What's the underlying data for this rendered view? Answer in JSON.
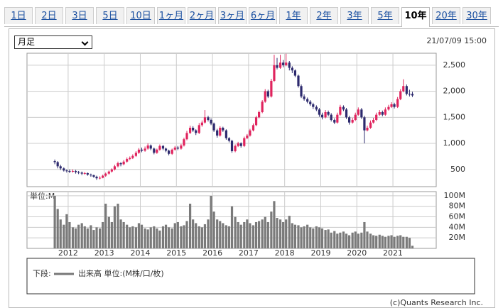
{
  "tabs": [
    "1日",
    "2日",
    "3日",
    "5日",
    "10日",
    "1ヶ月",
    "2ヶ月",
    "3ヶ月",
    "6ヶ月",
    "1年",
    "2年",
    "3年",
    "5年",
    "10年",
    "20年",
    "30年"
  ],
  "selected_tab": 13,
  "period_select": "月足",
  "timestamp": "21/07/09 15:00",
  "legend": {
    "prefix": "下段:",
    "text": "出来高 単位:(M株/口/枚)"
  },
  "footer": "(c)Quants Research Inc.",
  "chart_data": {
    "type": "candlestick",
    "up_color": "#e0245e",
    "down_color": "#2d2a6e",
    "volume_color": "#7a7a7a",
    "grid": true,
    "xlim": [
      2010.86,
      2022.2
    ],
    "xticks": [
      2012,
      2013,
      2014,
      2015,
      2016,
      2017,
      2018,
      2019,
      2020,
      2021
    ],
    "ylim": [
      170,
      2730
    ],
    "yticks": [
      500,
      {
        "value": 1000,
        "label": "1,000"
      },
      {
        "value": 1500,
        "label": "1,500"
      },
      {
        "value": 2000,
        "label": "2,000"
      },
      {
        "value": 2500,
        "label": "2,500"
      }
    ],
    "volume_label": "単位:M",
    "volume_ylim": [
      0,
      108
    ],
    "volume_yticks": [
      {
        "value": 20,
        "label": "20M"
      },
      {
        "value": 40,
        "label": "40M"
      },
      {
        "value": 60,
        "label": "60M"
      },
      {
        "value": 80,
        "label": "80M"
      },
      {
        "value": 100,
        "label": "100M"
      }
    ],
    "x": [
      2011.63,
      2011.71,
      2011.79,
      2011.88,
      2011.96,
      2012.04,
      2012.13,
      2012.21,
      2012.29,
      2012.38,
      2012.46,
      2012.54,
      2012.63,
      2012.71,
      2012.79,
      2012.88,
      2012.96,
      2013.04,
      2013.13,
      2013.21,
      2013.29,
      2013.38,
      2013.46,
      2013.54,
      2013.63,
      2013.71,
      2013.79,
      2013.88,
      2013.96,
      2014.04,
      2014.13,
      2014.21,
      2014.29,
      2014.38,
      2014.46,
      2014.54,
      2014.63,
      2014.71,
      2014.79,
      2014.88,
      2014.96,
      2015.04,
      2015.13,
      2015.21,
      2015.29,
      2015.38,
      2015.46,
      2015.54,
      2015.63,
      2015.71,
      2015.79,
      2015.88,
      2015.96,
      2016.04,
      2016.13,
      2016.21,
      2016.29,
      2016.38,
      2016.46,
      2016.54,
      2016.63,
      2016.71,
      2016.79,
      2016.88,
      2016.96,
      2017.04,
      2017.13,
      2017.21,
      2017.29,
      2017.38,
      2017.46,
      2017.54,
      2017.63,
      2017.71,
      2017.79,
      2017.88,
      2017.96,
      2018.04,
      2018.13,
      2018.21,
      2018.29,
      2018.38,
      2018.46,
      2018.54,
      2018.63,
      2018.71,
      2018.79,
      2018.88,
      2018.96,
      2019.04,
      2019.13,
      2019.21,
      2019.29,
      2019.38,
      2019.46,
      2019.54,
      2019.63,
      2019.71,
      2019.79,
      2019.88,
      2019.96,
      2020.04,
      2020.13,
      2020.21,
      2020.29,
      2020.38,
      2020.46,
      2020.54,
      2020.63,
      2020.71,
      2020.79,
      2020.88,
      2020.96,
      2021.04,
      2021.13,
      2021.21,
      2021.29,
      2021.38,
      2021.46,
      2021.54
    ],
    "ohlc": [
      [
        660,
        690,
        600,
        640
      ],
      [
        640,
        660,
        520,
        560
      ],
      [
        560,
        590,
        490,
        520
      ],
      [
        520,
        540,
        460,
        480
      ],
      [
        480,
        500,
        440,
        470
      ],
      [
        470,
        500,
        430,
        460
      ],
      [
        460,
        500,
        440,
        470
      ],
      [
        470,
        490,
        420,
        450
      ],
      [
        450,
        470,
        410,
        440
      ],
      [
        440,
        460,
        390,
        420
      ],
      [
        420,
        450,
        400,
        430
      ],
      [
        430,
        440,
        380,
        400
      ],
      [
        400,
        420,
        360,
        390
      ],
      [
        390,
        400,
        340,
        360
      ],
      [
        360,
        380,
        300,
        330
      ],
      [
        330,
        370,
        310,
        340
      ],
      [
        340,
        400,
        330,
        380
      ],
      [
        380,
        440,
        360,
        420
      ],
      [
        420,
        480,
        400,
        460
      ],
      [
        460,
        520,
        440,
        500
      ],
      [
        500,
        590,
        480,
        560
      ],
      [
        560,
        650,
        540,
        620
      ],
      [
        620,
        640,
        560,
        600
      ],
      [
        600,
        680,
        580,
        650
      ],
      [
        650,
        730,
        630,
        700
      ],
      [
        700,
        750,
        680,
        720
      ],
      [
        720,
        790,
        700,
        760
      ],
      [
        760,
        850,
        740,
        820
      ],
      [
        820,
        910,
        800,
        880
      ],
      [
        880,
        920,
        830,
        860
      ],
      [
        860,
        940,
        840,
        900
      ],
      [
        900,
        1000,
        880,
        960
      ],
      [
        960,
        980,
        870,
        900
      ],
      [
        900,
        920,
        790,
        820
      ],
      [
        820,
        900,
        800,
        880
      ],
      [
        880,
        980,
        860,
        950
      ],
      [
        950,
        970,
        870,
        900
      ],
      [
        900,
        920,
        830,
        860
      ],
      [
        860,
        880,
        770,
        800
      ],
      [
        800,
        900,
        780,
        880
      ],
      [
        880,
        950,
        860,
        920
      ],
      [
        920,
        950,
        870,
        900
      ],
      [
        900,
        990,
        880,
        960
      ],
      [
        960,
        1110,
        940,
        1080
      ],
      [
        1080,
        1240,
        1060,
        1200
      ],
      [
        1200,
        1340,
        1180,
        1300
      ],
      [
        1300,
        1330,
        1220,
        1250
      ],
      [
        1250,
        1270,
        1160,
        1200
      ],
      [
        1200,
        1390,
        1180,
        1350
      ],
      [
        1350,
        1440,
        1320,
        1400
      ],
      [
        1400,
        1640,
        1380,
        1500
      ],
      [
        1500,
        1530,
        1420,
        1450
      ],
      [
        1450,
        1480,
        1350,
        1380
      ],
      [
        1380,
        1400,
        1220,
        1250
      ],
      [
        1250,
        1280,
        1110,
        1150
      ],
      [
        1150,
        1330,
        1130,
        1300
      ],
      [
        1300,
        1320,
        1220,
        1250
      ],
      [
        1250,
        1270,
        1070,
        1100
      ],
      [
        1100,
        1120,
        1020,
        1050
      ],
      [
        1050,
        1070,
        820,
        850
      ],
      [
        850,
        980,
        830,
        950
      ],
      [
        950,
        1030,
        930,
        1000
      ],
      [
        1000,
        1020,
        920,
        950
      ],
      [
        950,
        1130,
        930,
        1100
      ],
      [
        1100,
        1180,
        1080,
        1150
      ],
      [
        1150,
        1280,
        1130,
        1250
      ],
      [
        1250,
        1380,
        1230,
        1350
      ],
      [
        1350,
        1530,
        1330,
        1500
      ],
      [
        1500,
        1630,
        1480,
        1600
      ],
      [
        1600,
        1830,
        1580,
        1800
      ],
      [
        1800,
        2040,
        1780,
        2000
      ],
      [
        2000,
        2030,
        1870,
        1900
      ],
      [
        1900,
        2240,
        1880,
        2200
      ],
      [
        2200,
        2700,
        2180,
        2500
      ],
      [
        2500,
        2640,
        2420,
        2450
      ],
      [
        2450,
        2700,
        2430,
        2550
      ],
      [
        2550,
        2600,
        2460,
        2500
      ],
      [
        2500,
        2720,
        2480,
        2550
      ],
      [
        2550,
        2580,
        2400,
        2450
      ],
      [
        2450,
        2480,
        2350,
        2400
      ],
      [
        2400,
        2420,
        2270,
        2300
      ],
      [
        2300,
        2320,
        2070,
        2100
      ],
      [
        2100,
        2130,
        1870,
        1900
      ],
      [
        1900,
        1940,
        1820,
        1850
      ],
      [
        1850,
        1880,
        1770,
        1800
      ],
      [
        1800,
        1830,
        1720,
        1750
      ],
      [
        1750,
        1780,
        1660,
        1700
      ],
      [
        1700,
        1730,
        1620,
        1650
      ],
      [
        1650,
        1680,
        1510,
        1550
      ],
      [
        1550,
        1590,
        1460,
        1500
      ],
      [
        1500,
        1640,
        1480,
        1600
      ],
      [
        1600,
        1630,
        1520,
        1550
      ],
      [
        1550,
        1580,
        1420,
        1450
      ],
      [
        1450,
        1480,
        1370,
        1400
      ],
      [
        1400,
        1590,
        1380,
        1550
      ],
      [
        1550,
        1740,
        1530,
        1700
      ],
      [
        1700,
        1730,
        1620,
        1650
      ],
      [
        1650,
        1680,
        1470,
        1500
      ],
      [
        1500,
        1530,
        1360,
        1400
      ],
      [
        1400,
        1490,
        1380,
        1450
      ],
      [
        1450,
        1590,
        1430,
        1550
      ],
      [
        1550,
        1690,
        1530,
        1650
      ],
      [
        1650,
        1680,
        1470,
        1500
      ],
      [
        1500,
        1530,
        1000,
        1250
      ],
      [
        1250,
        1340,
        1230,
        1300
      ],
      [
        1300,
        1440,
        1280,
        1400
      ],
      [
        1400,
        1490,
        1380,
        1450
      ],
      [
        1450,
        1590,
        1430,
        1550
      ],
      [
        1550,
        1640,
        1530,
        1600
      ],
      [
        1600,
        1630,
        1520,
        1550
      ],
      [
        1550,
        1690,
        1530,
        1650
      ],
      [
        1650,
        1740,
        1630,
        1700
      ],
      [
        1700,
        1790,
        1680,
        1750
      ],
      [
        1750,
        1780,
        1670,
        1700
      ],
      [
        1700,
        1890,
        1680,
        1850
      ],
      [
        1850,
        2040,
        1830,
        2000
      ],
      [
        2000,
        2230,
        1980,
        2100
      ],
      [
        2100,
        2130,
        1920,
        1950
      ],
      [
        1950,
        2030,
        1900,
        1950
      ],
      [
        1950,
        1990,
        1890,
        1920
      ]
    ],
    "volume": [
      100,
      75,
      55,
      45,
      65,
      50,
      40,
      38,
      45,
      48,
      42,
      38,
      44,
      35,
      40,
      38,
      50,
      85,
      60,
      50,
      80,
      85,
      55,
      50,
      45,
      40,
      42,
      40,
      48,
      45,
      38,
      36,
      40,
      42,
      38,
      34,
      42,
      45,
      40,
      38,
      48,
      50,
      42,
      44,
      52,
      85,
      55,
      48,
      42,
      40,
      46,
      55,
      100,
      70,
      55,
      52,
      48,
      44,
      42,
      80,
      60,
      50,
      45,
      50,
      55,
      48,
      44,
      50,
      52,
      55,
      60,
      50,
      70,
      90,
      58,
      55,
      50,
      55,
      62,
      48,
      45,
      44,
      40,
      42,
      45,
      40,
      38,
      42,
      40,
      38,
      35,
      36,
      30,
      33,
      28,
      30,
      32,
      28,
      25,
      30,
      32,
      28,
      30,
      50,
      32,
      28,
      25,
      24,
      26,
      24,
      22,
      24,
      25,
      22,
      24,
      25,
      22,
      22,
      20,
      5
    ]
  }
}
